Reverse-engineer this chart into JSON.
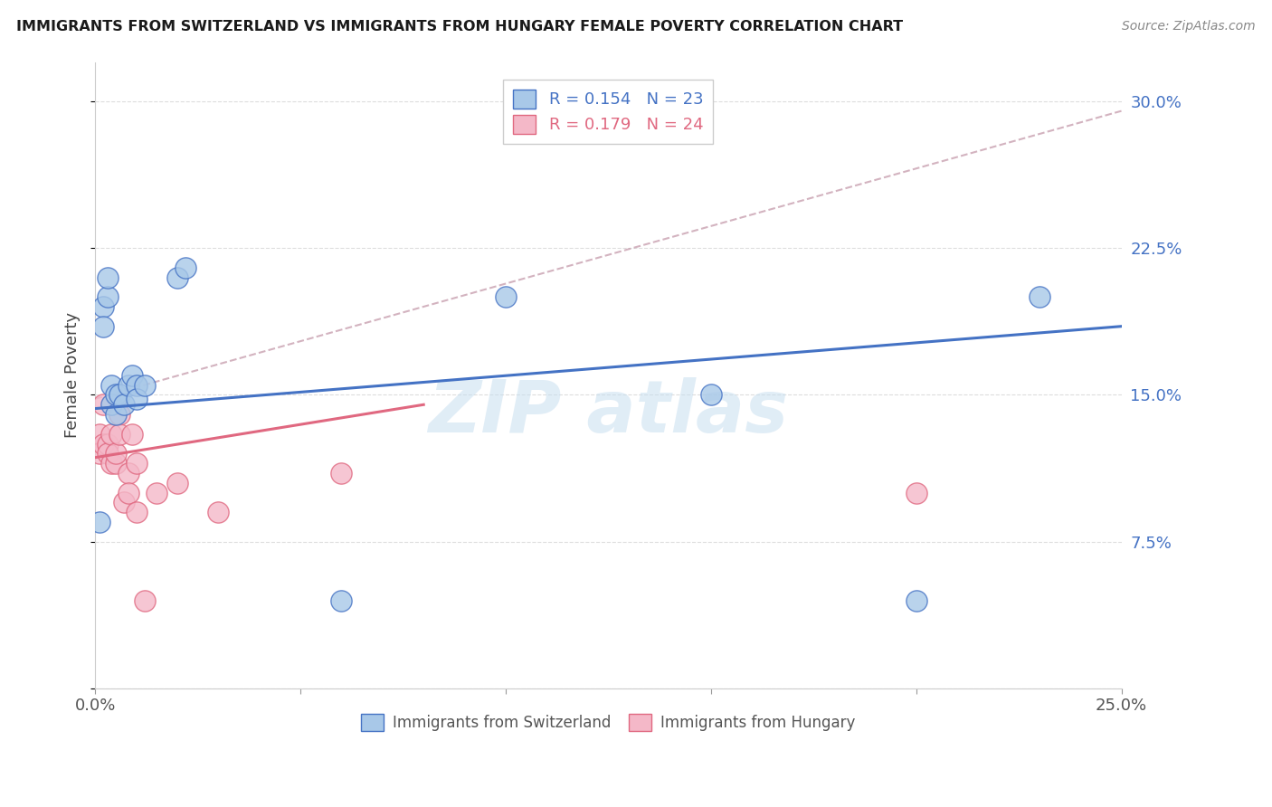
{
  "title": "IMMIGRANTS FROM SWITZERLAND VS IMMIGRANTS FROM HUNGARY FEMALE POVERTY CORRELATION CHART",
  "source": "Source: ZipAtlas.com",
  "ylabel": "Female Poverty",
  "legend_label1": "Immigrants from Switzerland",
  "legend_label2": "Immigrants from Hungary",
  "r1": 0.154,
  "n1": 23,
  "r2": 0.179,
  "n2": 24,
  "xlim": [
    0.0,
    0.25
  ],
  "ylim": [
    0.0,
    0.32
  ],
  "xticks": [
    0.0,
    0.05,
    0.1,
    0.15,
    0.2,
    0.25
  ],
  "xtick_labels": [
    "0.0%",
    "",
    "",
    "",
    "",
    "25.0%"
  ],
  "yticks": [
    0.0,
    0.075,
    0.15,
    0.225,
    0.3
  ],
  "ytick_labels": [
    "",
    "7.5%",
    "15.0%",
    "22.5%",
    "30.0%"
  ],
  "color_switzerland": "#a8c8e8",
  "color_hungary": "#f4b8c8",
  "color_line_switzerland": "#4472c4",
  "color_line_hungary": "#e06880",
  "color_line_gray": "#c8a0b0",
  "switzerland_x": [
    0.001,
    0.002,
    0.002,
    0.003,
    0.003,
    0.004,
    0.004,
    0.005,
    0.005,
    0.006,
    0.007,
    0.008,
    0.009,
    0.01,
    0.01,
    0.012,
    0.02,
    0.022,
    0.06,
    0.1,
    0.15,
    0.2,
    0.23
  ],
  "switzerland_y": [
    0.085,
    0.195,
    0.185,
    0.2,
    0.21,
    0.155,
    0.145,
    0.15,
    0.14,
    0.15,
    0.145,
    0.155,
    0.16,
    0.155,
    0.148,
    0.155,
    0.21,
    0.215,
    0.045,
    0.2,
    0.15,
    0.045,
    0.2
  ],
  "hungary_x": [
    0.001,
    0.001,
    0.002,
    0.002,
    0.003,
    0.003,
    0.004,
    0.004,
    0.005,
    0.005,
    0.006,
    0.006,
    0.007,
    0.008,
    0.008,
    0.009,
    0.01,
    0.01,
    0.012,
    0.015,
    0.02,
    0.03,
    0.06,
    0.2
  ],
  "hungary_y": [
    0.13,
    0.12,
    0.145,
    0.125,
    0.125,
    0.12,
    0.13,
    0.115,
    0.115,
    0.12,
    0.14,
    0.13,
    0.095,
    0.11,
    0.1,
    0.13,
    0.115,
    0.09,
    0.045,
    0.1,
    0.105,
    0.09,
    0.11,
    0.1
  ],
  "sw_trend_x0": 0.0,
  "sw_trend_y0": 0.143,
  "sw_trend_x1": 0.25,
  "sw_trend_y1": 0.185,
  "hu_trend_x0": 0.0,
  "hu_trend_y0": 0.118,
  "hu_trend_x1": 0.08,
  "hu_trend_y1": 0.145,
  "gray_trend_x0": 0.0,
  "gray_trend_y0": 0.148,
  "gray_trend_x1": 0.25,
  "gray_trend_y1": 0.295,
  "background_color": "#ffffff",
  "grid_color": "#dddddd"
}
